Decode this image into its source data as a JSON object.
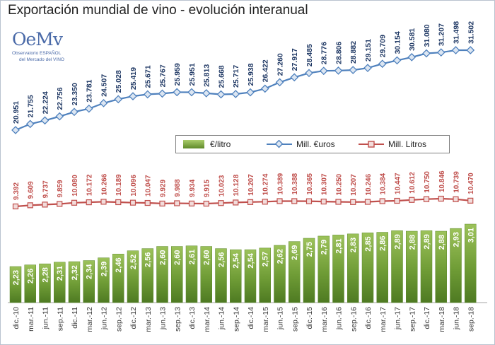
{
  "chart_data": {
    "type": "bar",
    "title": "Exportación mundial de vino - evolución interanual",
    "categories": [
      "dic.-10",
      "mar.-11",
      "jun.-11",
      "sep.-11",
      "dic.-11",
      "mar.-12",
      "jun.-12",
      "sep.-12",
      "dic.-12",
      "mar.-13",
      "jun.-13",
      "sep.-13",
      "dic.-13",
      "mar.-14",
      "jun.-14",
      "sep.-14",
      "dic.-14",
      "mar.-15",
      "jun.-15",
      "sep.-15",
      "dic.-15",
      "mar.-16",
      "jun.-16",
      "sep.-16",
      "dic.-16",
      "mar.-17",
      "jun.-17",
      "sep.-17",
      "dic.-17",
      "mar.-18",
      "jun.-18",
      "sep.-18"
    ],
    "series": [
      {
        "name": "€/litro",
        "type": "bar",
        "color": "#77a33c",
        "values": [
          2.23,
          2.26,
          2.28,
          2.31,
          2.32,
          2.34,
          2.39,
          2.46,
          2.52,
          2.56,
          2.6,
          2.6,
          2.61,
          2.6,
          2.56,
          2.54,
          2.54,
          2.57,
          2.62,
          2.69,
          2.75,
          2.79,
          2.81,
          2.83,
          2.85,
          2.86,
          2.89,
          2.88,
          2.89,
          2.88,
          2.93,
          3.01
        ],
        "labels": [
          "2,23",
          "2,26",
          "2,28",
          "2,31",
          "2,32",
          "2,34",
          "2,39",
          "2,46",
          "2,52",
          "2,56",
          "2,60",
          "2,60",
          "2,61",
          "2,60",
          "2,56",
          "2,54",
          "2,54",
          "2,57",
          "2,62",
          "2,69",
          "2,75",
          "2,79",
          "2,81",
          "2,83",
          "2,85",
          "2,86",
          "2,89",
          "2,88",
          "2,89",
          "2,88",
          "2,93",
          "3,01"
        ]
      },
      {
        "name": "Mill. €uros",
        "type": "line",
        "color": "#4f81bd",
        "values": [
          20951,
          21755,
          22224,
          22756,
          23350,
          23781,
          24507,
          25028,
          25419,
          25671,
          25767,
          25959,
          25951,
          25813,
          25668,
          25717,
          25938,
          26422,
          27260,
          27917,
          28485,
          28776,
          28806,
          28882,
          29151,
          29709,
          30154,
          30581,
          31080,
          31207,
          31498,
          31502
        ],
        "labels": [
          "20.951",
          "21.755",
          "22.224",
          "22.756",
          "23.350",
          "23.781",
          "24.507",
          "25.028",
          "25.419",
          "25.671",
          "25.767",
          "25.959",
          "25.951",
          "25.813",
          "25.668",
          "25.717",
          "25.938",
          "26.422",
          "27.260",
          "27.917",
          "28.485",
          "28.776",
          "28.806",
          "28.882",
          "29.151",
          "29.709",
          "30.154",
          "30.581",
          "31.080",
          "31.207",
          "31.498",
          "31.502"
        ]
      },
      {
        "name": "Mill. Litros",
        "type": "line",
        "color": "#c0504d",
        "values": [
          9392,
          9609,
          9737,
          9859,
          10080,
          10172,
          10266,
          10189,
          10096,
          10047,
          9929,
          9988,
          9934,
          9915,
          10023,
          10128,
          10207,
          10274,
          10389,
          10388,
          10365,
          10307,
          10250,
          10207,
          10246,
          10384,
          10447,
          10612,
          10750,
          10846,
          10739,
          10470
        ],
        "labels": [
          "9.392",
          "9.609",
          "9.737",
          "9.859",
          "10.080",
          "10.172",
          "10.266",
          "10.189",
          "10.096",
          "10.047",
          "9.929",
          "9.988",
          "9.934",
          "9.915",
          "10.023",
          "10.128",
          "10.207",
          "10.274",
          "10.389",
          "10.388",
          "10.365",
          "10.307",
          "10.250",
          "10.207",
          "10.246",
          "10.384",
          "10.447",
          "10.612",
          "10.750",
          "10.846",
          "10.739",
          "10.470"
        ]
      }
    ],
    "legend": {
      "position": "middle-right"
    },
    "grid": false
  },
  "logo": {
    "mark": "OeMv",
    "line1": "Observatorio ESPAÑOL",
    "line2": "del Mercado del VINO"
  }
}
